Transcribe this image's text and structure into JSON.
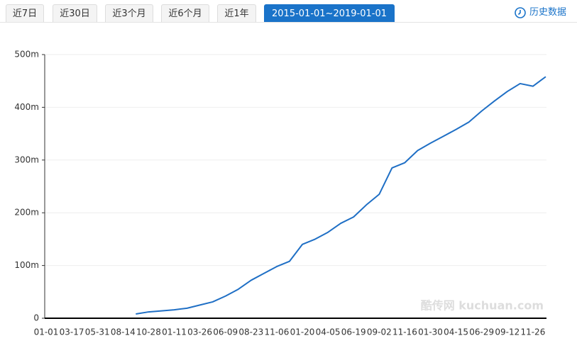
{
  "tabs": [
    {
      "label": "近7日",
      "active": false
    },
    {
      "label": "近30日",
      "active": false
    },
    {
      "label": "近3个月",
      "active": false
    },
    {
      "label": "近6个月",
      "active": false
    },
    {
      "label": "近1年",
      "active": false
    },
    {
      "label": "2015-01-01~2019-01-01",
      "active": true
    }
  ],
  "history_link": "历史数据",
  "watermark": "酷传网 kuchuan.com",
  "chart_data": {
    "type": "line",
    "categories": [
      "01-01",
      null,
      "03-17",
      null,
      "05-31",
      null,
      "08-14",
      null,
      "10-28",
      null,
      "01-11",
      null,
      "03-26",
      null,
      "06-09",
      null,
      "08-23",
      null,
      "11-06",
      null,
      "01-20",
      null,
      "04-05",
      null,
      "06-19",
      null,
      "09-02",
      null,
      "11-16",
      null,
      "01-30",
      null,
      "04-15",
      null,
      "06-29",
      null,
      "09-12",
      null,
      "11-26",
      null
    ],
    "values": [
      null,
      null,
      null,
      null,
      null,
      null,
      null,
      8,
      12,
      14,
      16,
      19,
      25,
      31,
      42,
      55,
      72,
      85,
      98,
      108,
      140,
      150,
      163,
      180,
      192,
      215,
      235,
      285,
      295,
      318,
      332,
      345,
      358,
      372,
      393,
      412,
      430,
      445,
      440,
      458
    ],
    "color": "#1f6fc5",
    "ylim": [
      0,
      500
    ],
    "yticks": [
      0,
      {
        "value": 100,
        "label": "100m"
      },
      {
        "value": 200,
        "label": "200m"
      },
      {
        "value": 300,
        "label": "300m"
      },
      {
        "value": 400,
        "label": "400m"
      },
      {
        "value": 500,
        "label": "500m"
      }
    ],
    "grid": true
  }
}
